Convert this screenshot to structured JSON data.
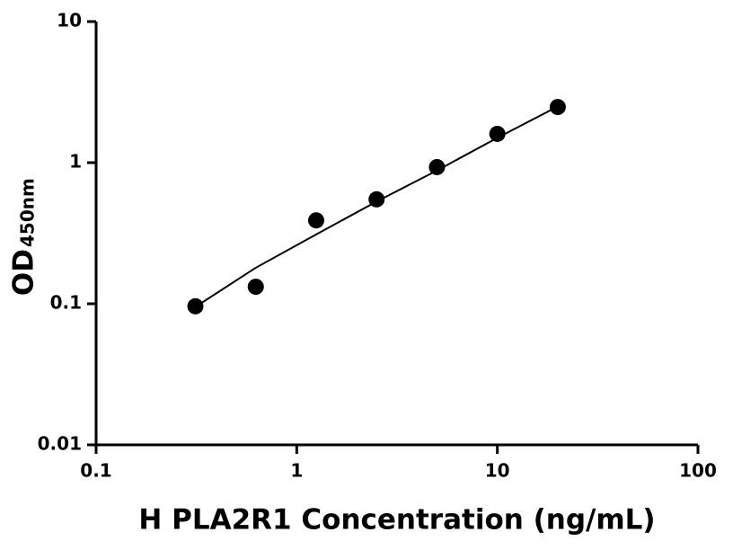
{
  "chart_data": {
    "type": "scatter",
    "x_label": "H PLA2R1 Concentration (ng/mL)",
    "y_label": "OD",
    "y_label_sub": "450nm",
    "log_x": true,
    "log_y": true,
    "xlim": [
      0.1,
      100
    ],
    "xticks": [
      0.1,
      1,
      10,
      100
    ],
    "ylim": [
      0.01,
      10
    ],
    "yticks": [
      0.01,
      0.1,
      1,
      10
    ],
    "color": "#000000",
    "x": [
      0.3125,
      0.625,
      1.25,
      2.5,
      5,
      10,
      20
    ],
    "values": [
      0.096,
      0.132,
      0.39,
      0.55,
      0.93,
      1.6,
      2.48
    ],
    "curve": {
      "x": [
        0.3125,
        0.625,
        1.25,
        2.5,
        5,
        10,
        20
      ],
      "values": [
        0.095,
        0.18,
        0.31,
        0.53,
        0.88,
        1.5,
        2.5
      ]
    }
  }
}
